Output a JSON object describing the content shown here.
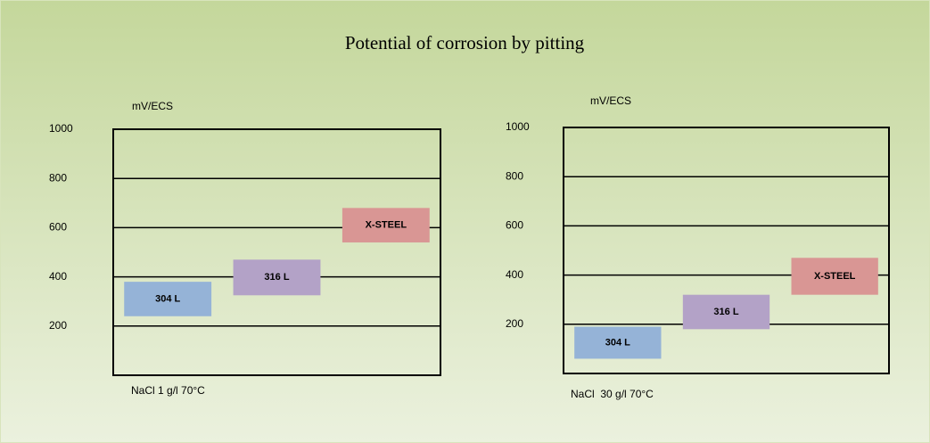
{
  "title": "Potential of corrosion by pitting",
  "chart_data": [
    {
      "type": "floating_bar",
      "y_label": "mV/ECS",
      "x_label": "NaCl 1 g/l 70°C",
      "categories": [
        "304 L",
        "316 L",
        "X-STEEL"
      ],
      "lows": [
        240,
        325,
        540
      ],
      "highs": [
        380,
        470,
        680
      ],
      "colors": [
        "#95b3d7",
        "#b3a2c7",
        "#d99694"
      ],
      "ylim": [
        0,
        1000
      ],
      "yticks": [
        200,
        400,
        600,
        800,
        1000
      ],
      "grid": true
    },
    {
      "type": "floating_bar",
      "y_label": "mV/ECS",
      "x_label": "NaCl  30 g/l 70°C",
      "categories": [
        "304 L",
        "316 L",
        "X-STEEL"
      ],
      "lows": [
        60,
        180,
        320
      ],
      "highs": [
        190,
        320,
        470
      ],
      "colors": [
        "#95b3d7",
        "#b3a2c7",
        "#d99694"
      ],
      "ylim": [
        0,
        1000
      ],
      "yticks": [
        200,
        400,
        600,
        800,
        1000
      ],
      "grid": true
    }
  ]
}
